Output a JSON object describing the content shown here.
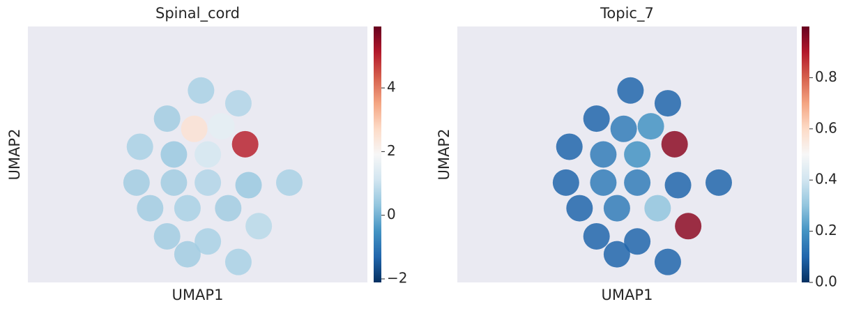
{
  "chart_data": [
    {
      "type": "scatter",
      "title": "Spinal_cord",
      "x_label": "UMAP1",
      "y_label": "UMAP2",
      "colormap": "RdBu_r",
      "xlim": [
        0,
        100
      ],
      "ylim": [
        0,
        100
      ],
      "x": [
        51,
        62,
        41,
        33,
        43,
        53,
        64,
        32,
        43,
        53,
        65,
        77,
        36,
        47,
        59,
        68,
        41,
        53,
        62,
        47,
        57,
        49
      ],
      "y": [
        75,
        70,
        64,
        53,
        50,
        50,
        54,
        39,
        39,
        39,
        38,
        39,
        29,
        29,
        29,
        22,
        18,
        16,
        8,
        11,
        61,
        60
      ],
      "values": [
        0.6,
        0.7,
        0.5,
        0.6,
        0.4,
        1.2,
        5,
        0.5,
        0.5,
        0.7,
        0.4,
        0.6,
        0.5,
        0.6,
        0.5,
        0.8,
        0.5,
        0.6,
        0.6,
        0.5,
        1.5,
        2.5
      ],
      "clim": [
        -2.11,
        5.93
      ],
      "cticks": [
        {
          "value": -2,
          "label": "−2"
        },
        0,
        2,
        4
      ]
    },
    {
      "type": "scatter",
      "title": "Topic_7",
      "x_label": "UMAP1",
      "y_label": "UMAP2",
      "colormap": "RdBu_r",
      "xlim": [
        0,
        100
      ],
      "ylim": [
        0,
        100
      ],
      "x": [
        51,
        62,
        41,
        33,
        43,
        53,
        64,
        32,
        43,
        53,
        65,
        77,
        36,
        47,
        59,
        68,
        41,
        53,
        62,
        47,
        57,
        49
      ],
      "y": [
        75,
        70,
        64,
        53,
        50,
        50,
        54,
        39,
        39,
        39,
        38,
        39,
        29,
        29,
        29,
        22,
        18,
        16,
        8,
        11,
        61,
        60
      ],
      "values": [
        0.1,
        0.1,
        0.1,
        0.1,
        0.15,
        0.2,
        0.95,
        0.1,
        0.15,
        0.15,
        0.1,
        0.1,
        0.1,
        0.15,
        0.3,
        0.95,
        0.1,
        0.1,
        0.1,
        0.1,
        0.2,
        0.15
      ],
      "clim": [
        0,
        1.0
      ],
      "cticks": [
        {
          "value": 0,
          "label": "0.0"
        },
        0.2,
        0.4,
        0.6,
        0.8
      ]
    }
  ]
}
